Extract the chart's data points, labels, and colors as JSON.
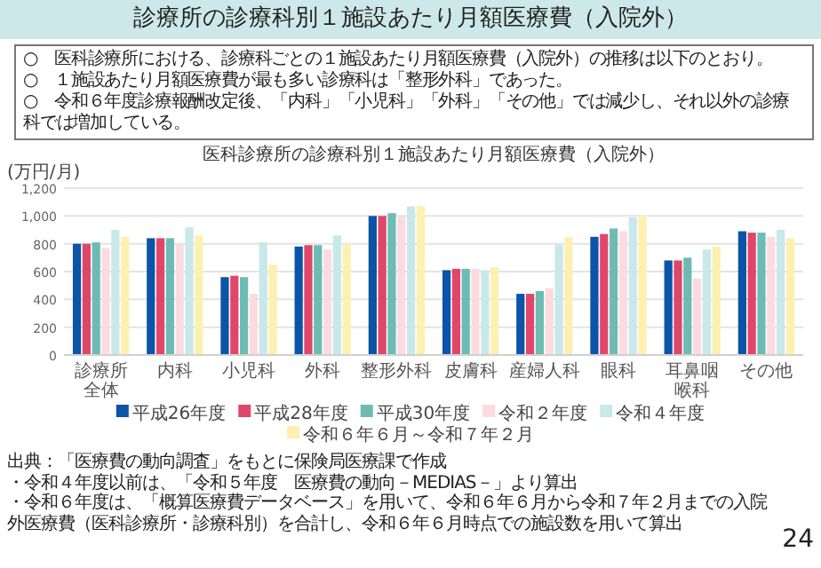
{
  "chart_data": {
    "type": "bar",
    "title": "診療所の診療科別１施設あたり月額医療費（入院外）",
    "subtitle": "医科診療所の診療科別１施設あたり月額医療費（入院外）",
    "ylabel": "(万円/月)",
    "annotations": [
      "○　医科診療所における、診療科ごとの１施設あたり月額医療費（入院外）の推移は以下のとおり。",
      "○　１施設あたり月額医療費が最も多い診療科は「整形外科」であった。",
      "○　令和６年度診療報酬改定後、「内科」「小児科」「外科」「その他」では減少し、それ以外の診療科では増加している。",
      "出典：「医療費の動向調査」をもとに保険局医療課で作成",
      "・令和４年度以前は、「令和５年度　医療費の動向－MEDIAS－」より算出",
      "・令和６年度は、「概算医療費データベース」を用いて、令和６年６月から令和７年２月までの入院外医療費（医科診療所・診療科別）を合計し、令和６年６月時点での施設数を用いて算出",
      "24"
    ],
    "categories": [
      "診療所全体",
      "内科",
      "小児科",
      "外科",
      "整形外科",
      "皮膚科",
      "産婦人科",
      "眼科",
      "耳鼻咽喉科",
      "その他"
    ],
    "series": [
      {
        "name": "平成26年度",
        "color": "#0b54a8",
        "values": [
          800,
          840,
          560,
          780,
          1000,
          610,
          440,
          850,
          680,
          890
        ]
      },
      {
        "name": "平成28年度",
        "color": "#e0466a",
        "values": [
          800,
          840,
          570,
          790,
          1000,
          620,
          440,
          870,
          680,
          880
        ]
      },
      {
        "name": "平成30年度",
        "color": "#6cbcb4",
        "values": [
          810,
          840,
          560,
          790,
          1020,
          620,
          460,
          910,
          700,
          880
        ]
      },
      {
        "name": "令和２年度",
        "color": "#fcdbe0",
        "values": [
          770,
          800,
          440,
          760,
          1000,
          620,
          480,
          890,
          550,
          850
        ]
      },
      {
        "name": "令和４年度",
        "color": "#c8e8ea",
        "values": [
          900,
          920,
          810,
          860,
          1070,
          610,
          790,
          990,
          760,
          900
        ]
      },
      {
        "name": "令和６年６月～令和７年２月",
        "color": "#fdf0b0",
        "values": [
          850,
          860,
          650,
          800,
          1070,
          630,
          850,
          1000,
          780,
          840
        ]
      }
    ],
    "ylim": [
      0,
      1200
    ],
    "yticks": [
      0,
      200,
      400,
      600,
      800,
      {
        "value": 1000,
        "label": "1,000"
      },
      {
        "value": 1200,
        "label": "1,200"
      }
    ],
    "grid": "y",
    "legend": "bottom"
  }
}
